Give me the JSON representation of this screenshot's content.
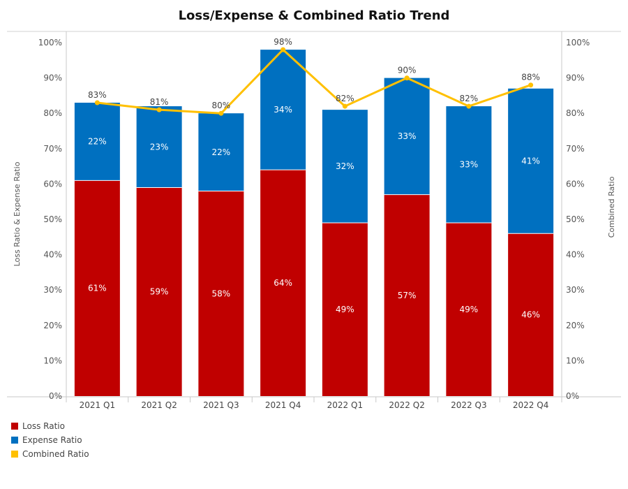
{
  "chart_data": {
    "type": "bar",
    "title": "Loss/Expense & Combined Ratio Trend",
    "categories": [
      "2021 Q1",
      "2021 Q2",
      "2021 Q3",
      "2021 Q4",
      "2022 Q1",
      "2022 Q2",
      "2022 Q3",
      "2022 Q4"
    ],
    "series": [
      {
        "name": "Loss Ratio",
        "kind": "stacked-bar",
        "color": "#c00000",
        "values": [
          61,
          59,
          58,
          64,
          49,
          57,
          49,
          46
        ],
        "labels": [
          "61%",
          "59%",
          "58%",
          "64%",
          "49%",
          "57%",
          "49%",
          "46%"
        ]
      },
      {
        "name": "Expense Ratio",
        "kind": "stacked-bar",
        "color": "#0070c0",
        "values": [
          22,
          23,
          22,
          34,
          32,
          33,
          33,
          41
        ],
        "labels": [
          "22%",
          "23%",
          "22%",
          "34%",
          "32%",
          "33%",
          "33%",
          "41%"
        ]
      },
      {
        "name": "Combined Ratio",
        "kind": "line",
        "axis": "right",
        "color": "#ffc000",
        "values": [
          83,
          81,
          80,
          98,
          82,
          90,
          82,
          88
        ],
        "labels": [
          "83%",
          "81%",
          "80%",
          "98%",
          "82%",
          "90%",
          "82%",
          "88%"
        ]
      }
    ],
    "ylabel": "Loss Ratio & Expense Ratio",
    "ylabel_right": "Combined Ratio",
    "ylim": [
      0,
      100
    ],
    "ylim_right": [
      0,
      100
    ],
    "yticks": [
      "0%",
      "10%",
      "20%",
      "30%",
      "40%",
      "50%",
      "60%",
      "70%",
      "80%",
      "90%",
      "100%"
    ],
    "legend_position": "bottom-left",
    "grid": false
  }
}
